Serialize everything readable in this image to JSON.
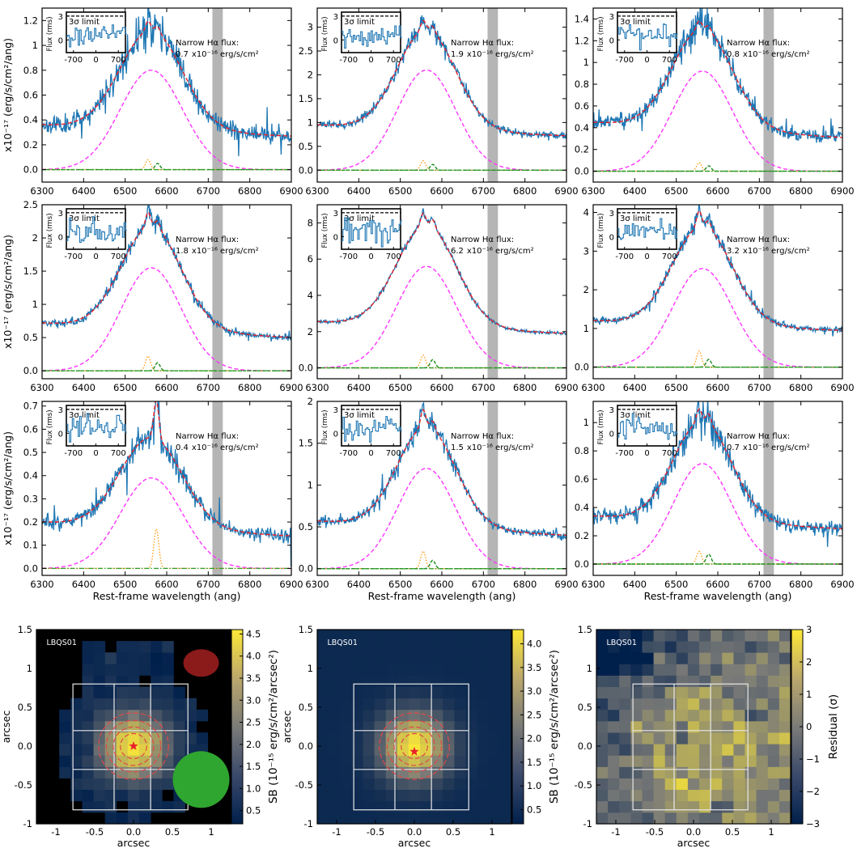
{
  "colors": {
    "data": "#1f77b4",
    "fit": "#e8212b",
    "broad": "#ff33ff",
    "narrow_ha": "#ff9f1c",
    "nii": "#1a8a1a",
    "continuum": "#2ca02c",
    "excluded_band": "#b5b5b5",
    "map_low": "#0b2160",
    "map_high": "#ffe650"
  },
  "x_label": "Rest-frame wavelength (ang)",
  "y_label": "x10$^{-17}$ (erg/s/cm$^2$/ang)",
  "y_label_text": "x10⁻¹⁷ (erg/s/cm²/ang)",
  "inset": {
    "y_label": "Flux (rms)",
    "limit_label": "3σ limit",
    "limit_value": 3,
    "x_ticks": [
      "-700",
      "0",
      "700"
    ],
    "y_ticks": [
      "0",
      "3"
    ]
  },
  "annotation_title": "Narrow Hα flux:",
  "annotation_units": "x10⁻¹⁶ erg/s/cm²",
  "chart_data": [
    {
      "type": "line",
      "panel": "spectrum-1",
      "xlabel": "",
      "xlim": [
        6300,
        6900
      ],
      "ylim": [
        -0.1,
        1.3
      ],
      "y_ticks": [
        0.0,
        0.2,
        0.4,
        0.6,
        0.8,
        1.0,
        1.2
      ],
      "x_ticks": [
        6300,
        6400,
        6500,
        6600,
        6700,
        6800,
        6900
      ],
      "narrow_flux": "0.7",
      "continuum_left": 0.36,
      "continuum_right": 0.27,
      "broad_peak": 0.8,
      "broad_sigma": 75,
      "narrow_peak": 0.08,
      "nii_peak": 0.05,
      "noise": 0.06,
      "seed": 11,
      "ylabel": "x10⁻¹⁷ (erg/s/cm²/ang)"
    },
    {
      "type": "line",
      "panel": "spectrum-2",
      "xlabel": "",
      "xlim": [
        6300,
        6900
      ],
      "ylim": [
        -0.25,
        3.4
      ],
      "y_ticks": [
        0.0,
        0.5,
        1.0,
        1.5,
        2.0,
        2.5,
        3.0
      ],
      "x_ticks": [
        6300,
        6400,
        6500,
        6600,
        6700,
        6800,
        6900
      ],
      "narrow_flux": "1.9",
      "continuum_left": 0.95,
      "continuum_right": 0.72,
      "broad_peak": 2.1,
      "broad_sigma": 70,
      "narrow_peak": 0.2,
      "nii_peak": 0.12,
      "noise": 0.07,
      "seed": 23,
      "ylabel": ""
    },
    {
      "type": "line",
      "panel": "spectrum-3",
      "xlabel": "",
      "xlim": [
        6300,
        6900
      ],
      "ylim": [
        -0.1,
        1.5
      ],
      "y_ticks": [
        0.0,
        0.2,
        0.4,
        0.6,
        0.8,
        1.0,
        1.2,
        1.4
      ],
      "x_ticks": [
        6300,
        6400,
        6500,
        6600,
        6700,
        6800,
        6900
      ],
      "narrow_flux": "0.8",
      "continuum_left": 0.45,
      "continuum_right": 0.31,
      "broad_peak": 0.92,
      "broad_sigma": 72,
      "narrow_peak": 0.08,
      "nii_peak": 0.05,
      "noise": 0.06,
      "seed": 37,
      "ylabel": ""
    },
    {
      "type": "line",
      "panel": "spectrum-4",
      "xlabel": "",
      "xlim": [
        6300,
        6900
      ],
      "ylim": [
        -0.12,
        2.5
      ],
      "y_ticks": [
        0.0,
        0.5,
        1.0,
        1.5,
        2.0,
        2.5
      ],
      "x_ticks": [
        6300,
        6400,
        6500,
        6600,
        6700,
        6800,
        6900
      ],
      "narrow_flux": "1.8",
      "continuum_left": 0.72,
      "continuum_right": 0.5,
      "broad_peak": 1.55,
      "broad_sigma": 72,
      "narrow_peak": 0.22,
      "nii_peak": 0.12,
      "noise": 0.05,
      "seed": 41,
      "ylabel": "x10⁻¹⁷ (erg/s/cm²/ang)"
    },
    {
      "type": "line",
      "panel": "spectrum-5",
      "xlabel": "",
      "xlim": [
        6300,
        6900
      ],
      "ylim": [
        -0.6,
        9.0
      ],
      "y_ticks": [
        0,
        2,
        4,
        6,
        8
      ],
      "x_ticks": [
        6300,
        6400,
        6500,
        6600,
        6700,
        6800,
        6900
      ],
      "narrow_flux": "6.2",
      "continuum_left": 2.55,
      "continuum_right": 1.9,
      "broad_peak": 5.6,
      "broad_sigma": 72,
      "narrow_peak": 0.7,
      "nii_peak": 0.45,
      "noise": 0.08,
      "seed": 53,
      "ylabel": ""
    },
    {
      "type": "line",
      "panel": "spectrum-6",
      "xlabel": "",
      "xlim": [
        6300,
        6900
      ],
      "ylim": [
        -0.3,
        4.2
      ],
      "y_ticks": [
        0,
        1,
        2,
        3,
        4
      ],
      "x_ticks": [
        6300,
        6400,
        6500,
        6600,
        6700,
        6800,
        6900
      ],
      "narrow_flux": "3.2",
      "continuum_left": 1.2,
      "continuum_right": 0.95,
      "broad_peak": 2.55,
      "broad_sigma": 72,
      "narrow_peak": 0.42,
      "nii_peak": 0.2,
      "noise": 0.07,
      "seed": 67,
      "ylabel": ""
    },
    {
      "type": "line",
      "panel": "spectrum-7",
      "xlabel": "Rest-frame wavelength (ang)",
      "xlim": [
        6300,
        6900
      ],
      "ylim": [
        -0.03,
        0.72
      ],
      "y_ticks": [
        0.0,
        0.1,
        0.2,
        0.3,
        0.4,
        0.5,
        0.6,
        0.7
      ],
      "x_ticks": [
        6300,
        6400,
        6500,
        6600,
        6700,
        6800,
        6900
      ],
      "narrow_flux": "0.4",
      "continuum_left": 0.2,
      "continuum_right": 0.14,
      "broad_peak": 0.39,
      "broad_sigma": 75,
      "narrow_peak": 0.17,
      "nii_peak": 0.0,
      "narrow_center": 6575,
      "noise": 0.04,
      "seed": 71,
      "ylabel": "x10⁻¹⁷ (erg/s/cm²/ang)"
    },
    {
      "type": "line",
      "panel": "spectrum-8",
      "xlabel": "Rest-frame wavelength (ang)",
      "xlim": [
        6300,
        6900
      ],
      "ylim": [
        -0.08,
        2.0
      ],
      "y_ticks": [
        0.0,
        0.5,
        1.0,
        1.5,
        2.0
      ],
      "x_ticks": [
        6300,
        6400,
        6500,
        6600,
        6700,
        6800,
        6900
      ],
      "narrow_flux": "1.5",
      "continuum_left": 0.57,
      "continuum_right": 0.4,
      "broad_peak": 1.2,
      "broad_sigma": 70,
      "narrow_peak": 0.21,
      "nii_peak": 0.1,
      "noise": 0.05,
      "seed": 83,
      "ylabel": ""
    },
    {
      "type": "line",
      "panel": "spectrum-9",
      "xlabel": "Rest-frame wavelength (ang)",
      "xlim": [
        6300,
        6900
      ],
      "ylim": [
        -0.08,
        1.15
      ],
      "y_ticks": [
        0.0,
        0.2,
        0.4,
        0.6,
        0.8,
        1.0
      ],
      "x_ticks": [
        6300,
        6400,
        6500,
        6600,
        6700,
        6800,
        6900
      ],
      "narrow_flux": "0.7",
      "continuum_left": 0.34,
      "continuum_right": 0.25,
      "broad_peak": 0.71,
      "broad_sigma": 70,
      "narrow_peak": 0.09,
      "nii_peak": 0.07,
      "noise": 0.05,
      "seed": 97,
      "ylabel": ""
    },
    {
      "type": "heatmap",
      "panel": "map-observed",
      "label": "LBQS01",
      "xlabel": "arcsec",
      "ylabel": "arcsec",
      "xlim": [
        -1.25,
        1.25
      ],
      "ylim": [
        -1.0,
        1.5
      ],
      "x_ticks": [
        -1.0,
        -0.5,
        0.0,
        0.5,
        1.0
      ],
      "y_ticks": [
        -1.0,
        -0.5,
        0.0,
        0.5,
        1.0,
        1.5
      ],
      "colorbar_label": "SB (10⁻¹⁵ erg/s/cm²/arcsec²)",
      "colorbar_range": [
        0.2,
        4.6
      ],
      "colorbar_ticks": [
        0.5,
        1.0,
        1.5,
        2.0,
        2.5,
        3.0,
        3.5,
        4.0,
        4.5
      ],
      "peak": [
        0.0,
        0.0
      ],
      "star": [
        0.0,
        0.0
      ]
    },
    {
      "type": "heatmap",
      "panel": "map-model",
      "label": "LBQS01",
      "xlabel": "arcsec",
      "ylabel": "arcsec",
      "xlim": [
        -1.25,
        1.25
      ],
      "ylim": [
        -1.0,
        1.5
      ],
      "x_ticks": [
        -1.0,
        -0.5,
        0.0,
        0.5,
        1.0
      ],
      "y_ticks": [
        -1.0,
        -0.5,
        0.0,
        0.5,
        1.0,
        1.5
      ],
      "colorbar_label": "SB (10⁻¹⁵ erg/s/cm²/arcsec²)",
      "colorbar_range": [
        0.2,
        4.3
      ],
      "colorbar_ticks": [
        0.5,
        1.0,
        1.5,
        2.0,
        2.5,
        3.0,
        3.5,
        4.0
      ],
      "peak": [
        0.0,
        0.0
      ],
      "star": [
        0.0,
        -0.07
      ]
    },
    {
      "type": "heatmap",
      "panel": "map-residual",
      "label": "LBQS01",
      "xlabel": "arcsec",
      "ylabel": "",
      "xlim": [
        -1.25,
        1.25
      ],
      "ylim": [
        -1.0,
        1.5
      ],
      "x_ticks": [
        -1.0,
        -0.5,
        0.0,
        0.5,
        1.0
      ],
      "y_ticks": [
        -1.0,
        -0.5,
        0.0,
        0.5,
        1.0,
        1.5
      ],
      "colorbar_label": "Residual (σ)",
      "colorbar_range": [
        -3,
        3
      ],
      "colorbar_ticks": [
        -3,
        -2,
        -1,
        0,
        1,
        2,
        3
      ]
    }
  ]
}
